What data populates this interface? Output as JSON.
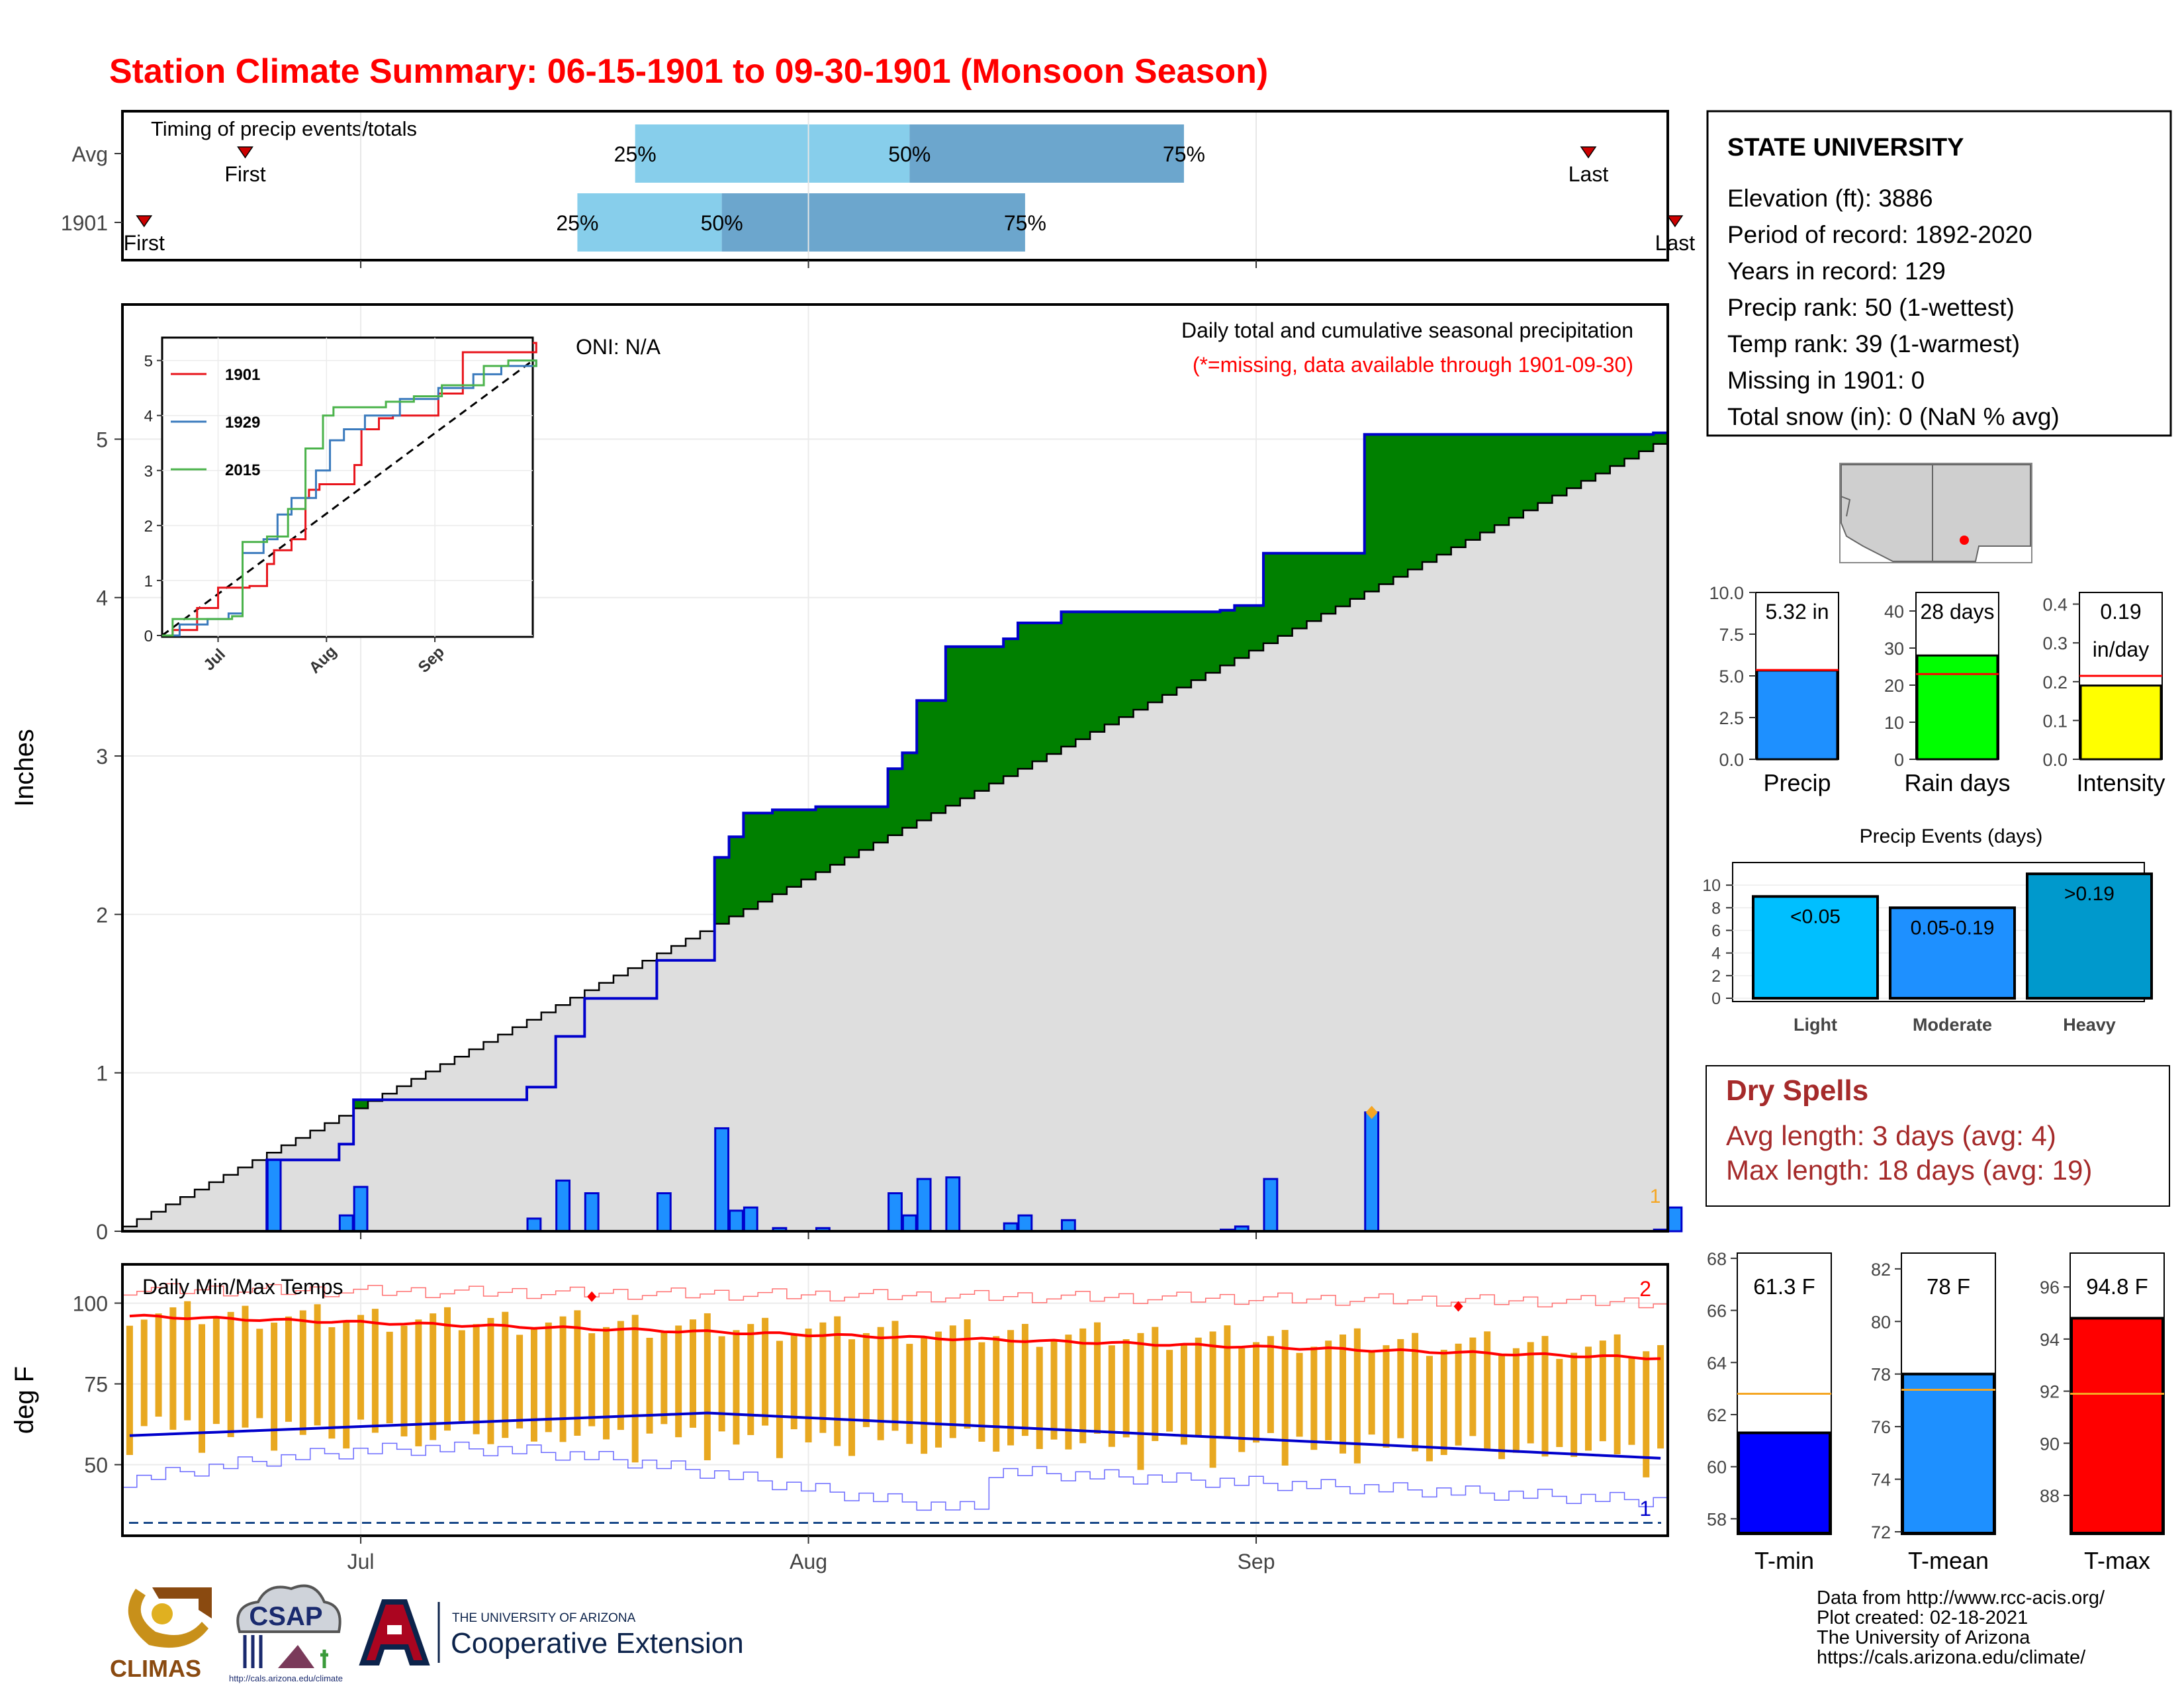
{
  "title": "Station Climate Summary: 06-15-1901 to 09-30-1901 (Monsoon Season)",
  "colors": {
    "title": "#ff0000",
    "cum_fill": "#008000",
    "cum_line": "#0000cc",
    "avg_fill": "#dedede",
    "daily_bar": "#1e90ff",
    "deficit": "#7a4a10",
    "temp_bar": "#e8a820",
    "tmax_line": "#ff0000",
    "tmin_line": "#0000cc",
    "light": "#00bfff",
    "moderate": "#1e90ff",
    "heavy": "#0099cc",
    "dry": "#a52a2a"
  },
  "chart_data": [
    {
      "id": "timing",
      "type": "bar",
      "title": "Timing of precip events/totals",
      "categories": [
        "Avg",
        "1901"
      ],
      "xlim": [
        "1901-06-15",
        "1901-09-30"
      ],
      "rows": [
        {
          "name": "Avg",
          "first": "1901-06-23",
          "p25": "1901-07-20",
          "p50": "1901-08-08",
          "p75": "1901-08-27",
          "last": "1901-09-24",
          "labels": {
            "first": "First",
            "p25": "25%",
            "p50": "50%",
            "p75": "75%",
            "last": "Last"
          }
        },
        {
          "name": "1901",
          "first": "1901-06-16",
          "p25": "1901-07-16",
          "p50": "1901-07-26",
          "p75": "1901-08-16",
          "last": "1901-09-30",
          "labels": {
            "first": "First",
            "p25": "25%",
            "p50": "50%",
            "p75": "75%",
            "last": "Last"
          }
        }
      ]
    },
    {
      "id": "precip",
      "type": "area",
      "title": "Daily total and cumulative seasonal precipitation",
      "subtitle": "(*=missing, data available through 1901-09-30)",
      "annotation": "ONI: N/A",
      "ylabel": "Inches",
      "ylim": [
        0,
        5.85
      ],
      "yticks": [
        0,
        1,
        2,
        3,
        4,
        5
      ],
      "xlim": [
        "1901-06-15",
        "1901-09-30"
      ],
      "xticks": [
        {
          "date": "1901-07-01",
          "label": "Jul"
        },
        {
          "date": "1901-08-01",
          "label": "Aug"
        },
        {
          "date": "1901-09-01",
          "label": "Sep"
        }
      ],
      "avg_cumulative": {
        "start": 0.03,
        "end": 4.97
      },
      "daily": [
        {
          "date": "1901-06-25",
          "value": 0.45
        },
        {
          "date": "1901-06-30",
          "value": 0.1
        },
        {
          "date": "1901-07-01",
          "value": 0.28
        },
        {
          "date": "1901-07-13",
          "value": 0.08
        },
        {
          "date": "1901-07-15",
          "value": 0.32
        },
        {
          "date": "1901-07-17",
          "value": 0.24
        },
        {
          "date": "1901-07-22",
          "value": 0.24
        },
        {
          "date": "1901-07-26",
          "value": 0.65
        },
        {
          "date": "1901-07-27",
          "value": 0.13
        },
        {
          "date": "1901-07-28",
          "value": 0.15
        },
        {
          "date": "1901-07-30",
          "value": 0.02
        },
        {
          "date": "1901-08-02",
          "value": 0.02
        },
        {
          "date": "1901-08-07",
          "value": 0.24
        },
        {
          "date": "1901-08-08",
          "value": 0.1
        },
        {
          "date": "1901-08-09",
          "value": 0.33
        },
        {
          "date": "1901-08-11",
          "value": 0.34
        },
        {
          "date": "1901-08-15",
          "value": 0.05
        },
        {
          "date": "1901-08-16",
          "value": 0.1
        },
        {
          "date": "1901-08-19",
          "value": 0.07
        },
        {
          "date": "1901-08-30",
          "value": 0.01
        },
        {
          "date": "1901-08-31",
          "value": 0.03
        },
        {
          "date": "1901-09-02",
          "value": 0.33
        },
        {
          "date": "1901-09-09",
          "value": 0.75
        },
        {
          "date": "1901-09-29",
          "value": 0.01
        },
        {
          "date": "1901-09-30",
          "value": 0.15
        }
      ],
      "max_marker": {
        "date": "1901-09-09",
        "value": 0.75
      },
      "rank_label": {
        "date": "1901-09-29",
        "text": "1"
      }
    },
    {
      "id": "inset",
      "type": "line",
      "ylim": [
        0,
        5.2
      ],
      "yticks": [
        0,
        1,
        2,
        3,
        4,
        5
      ],
      "xticks": [
        {
          "date": "1901-07-01",
          "label": "Jul"
        },
        {
          "date": "1901-08-01",
          "label": "Aug"
        },
        {
          "date": "1901-09-01",
          "label": "Sep"
        }
      ],
      "series": [
        {
          "name": "1901",
          "color": "#e8141b",
          "points": [
            [
              "1901-06-15",
              0
            ],
            [
              "1901-06-18",
              0.1
            ],
            [
              "1901-06-25",
              0.5
            ],
            [
              "1901-07-01",
              0.87
            ],
            [
              "1901-07-10",
              0.9
            ],
            [
              "1901-07-15",
              1.3
            ],
            [
              "1901-07-17",
              1.55
            ],
            [
              "1901-07-22",
              1.75
            ],
            [
              "1901-07-26",
              2.5
            ],
            [
              "1901-07-27",
              2.65
            ],
            [
              "1901-07-30",
              2.75
            ],
            [
              "1901-08-09",
              3.1
            ],
            [
              "1901-08-11",
              3.75
            ],
            [
              "1901-08-16",
              3.95
            ],
            [
              "1901-08-20",
              4.0
            ],
            [
              "1901-09-02",
              4.4
            ],
            [
              "1901-09-09",
              5.15
            ],
            [
              "1901-09-30",
              5.32
            ]
          ]
        },
        {
          "name": "1929",
          "color": "#3a7abd",
          "points": [
            [
              "1901-06-15",
              0
            ],
            [
              "1901-06-20",
              0.2
            ],
            [
              "1901-06-28",
              0.3
            ],
            [
              "1901-07-04",
              0.4
            ],
            [
              "1901-07-08",
              1.5
            ],
            [
              "1901-07-14",
              1.75
            ],
            [
              "1901-07-18",
              2.2
            ],
            [
              "1901-07-22",
              2.5
            ],
            [
              "1901-07-29",
              3.0
            ],
            [
              "1901-08-02",
              3.55
            ],
            [
              "1901-08-06",
              3.75
            ],
            [
              "1901-08-12",
              4.0
            ],
            [
              "1901-08-22",
              4.3
            ],
            [
              "1901-09-02",
              4.5
            ],
            [
              "1901-09-12",
              4.75
            ],
            [
              "1901-09-20",
              4.9
            ],
            [
              "1901-09-30",
              5.0
            ]
          ]
        },
        {
          "name": "2015",
          "color": "#4bb34b",
          "points": [
            [
              "1901-06-15",
              0
            ],
            [
              "1901-06-18",
              0.3
            ],
            [
              "1901-07-05",
              0.35
            ],
            [
              "1901-07-08",
              1.7
            ],
            [
              "1901-07-15",
              1.8
            ],
            [
              "1901-07-21",
              2.3
            ],
            [
              "1901-07-26",
              3.4
            ],
            [
              "1901-07-31",
              4.0
            ],
            [
              "1901-08-03",
              4.15
            ],
            [
              "1901-08-18",
              4.25
            ],
            [
              "1901-08-26",
              4.35
            ],
            [
              "1901-09-03",
              4.55
            ],
            [
              "1901-09-15",
              4.9
            ],
            [
              "1901-09-22",
              5.0
            ],
            [
              "1901-09-30",
              4.9
            ]
          ]
        }
      ],
      "avg_line": {
        "start": 0,
        "end": 5.0
      }
    },
    {
      "id": "temps",
      "type": "bar",
      "title": "Daily Min/Max Temps",
      "ylabel": "deg F",
      "ylim": [
        28,
        112
      ],
      "yticks": [
        50,
        75,
        100
      ],
      "xlim": [
        "1901-06-15",
        "1901-09-30"
      ],
      "xticks": [
        {
          "date": "1901-07-01",
          "label": "Jul"
        },
        {
          "date": "1901-08-01",
          "label": "Aug"
        },
        {
          "date": "1901-09-01",
          "label": "Sep"
        }
      ],
      "avg_tmax": {
        "start": 96,
        "end": 83
      },
      "avg_tmin": {
        "start": 59,
        "mid": 66,
        "end": 52
      },
      "record_low_line": 32,
      "tmax_records": [
        {
          "date": "1901-07-17",
          "value": 102
        },
        {
          "date": "1901-09-15",
          "value": 99
        }
      ],
      "label_top_right": "2",
      "label_bottom_right": "1"
    },
    {
      "id": "bars_precip",
      "type": "bar",
      "categories": [
        "Precip",
        "Rain days",
        "Intensity"
      ],
      "charts": [
        {
          "name": "Precip",
          "value": 5.32,
          "avg": 5.35,
          "ylim": [
            0,
            10
          ],
          "yticks": [
            "0.0",
            "2.5",
            "5.0",
            "7.5",
            "10.0"
          ],
          "label_top": "5.32 in",
          "label_bottom": "",
          "color": "#1e90ff"
        },
        {
          "name": "Rain days",
          "value": 28,
          "avg": 23,
          "ylim": [
            0,
            45
          ],
          "yticks": [
            "0",
            "10",
            "20",
            "30",
            "40"
          ],
          "label_top": "28 days",
          "label_bottom": "",
          "color": "#00ff00"
        },
        {
          "name": "Intensity",
          "value": 0.19,
          "avg": 0.215,
          "ylim": [
            0,
            0.43
          ],
          "yticks": [
            "0.0",
            "0.1",
            "0.2",
            "0.3",
            "0.4"
          ],
          "label_top": "0.19",
          "label_bottom": "in/day",
          "color": "#ffff00"
        }
      ]
    },
    {
      "id": "events",
      "type": "bar",
      "title": "Precip Events (days)",
      "categories": [
        "Light",
        "Moderate",
        "Heavy"
      ],
      "values": [
        9,
        8,
        11
      ],
      "labels": [
        "<0.05",
        "0.05-0.19",
        ">0.19"
      ],
      "ylim": [
        0,
        12
      ],
      "yticks": [
        0,
        2,
        4,
        6,
        8,
        10
      ]
    },
    {
      "id": "bars_temp",
      "type": "bar",
      "categories": [
        "T-min",
        "T-mean",
        "T-max"
      ],
      "charts": [
        {
          "name": "T-min",
          "value": 61.3,
          "avg": 62.8,
          "ylim": [
            57.4,
            68.2
          ],
          "yticks": [
            58,
            60,
            62,
            64,
            66,
            68
          ],
          "label": "61.3 F",
          "color": "#0000ff"
        },
        {
          "name": "T-mean",
          "value": 78,
          "avg": 77.4,
          "ylim": [
            71.9,
            82.6
          ],
          "yticks": [
            72,
            74,
            76,
            78,
            80,
            82
          ],
          "label": "78 F",
          "color": "#1e90ff"
        },
        {
          "name": "T-max",
          "value": 94.8,
          "avg": 91.9,
          "ylim": [
            86.5,
            97.3
          ],
          "yticks": [
            88,
            90,
            92,
            94,
            96
          ],
          "label": "94.8 F",
          "color": "#ff0000"
        }
      ]
    }
  ],
  "station": {
    "name": "STATE UNIVERSITY",
    "lines": [
      "Elevation (ft): 3886",
      "Period of record: 1892-2020",
      "Years in record: 129",
      "Precip rank: 50 (1-wettest)",
      "Temp rank: 39 (1-warmest)",
      "Missing in 1901: 0",
      "Total snow (in): 0 (NaN % avg)"
    ]
  },
  "dry_spells": {
    "title": "Dry Spells",
    "avg_length": "Avg length: 3 days (avg: 4)",
    "max_length": "Max length: 18 days (avg: 19)"
  },
  "footer": {
    "lines": [
      "Data from http://www.rcc-acis.org/",
      "Plot created: 02-18-2021",
      "The University of Arizona",
      "https://cals.arizona.edu/climate/"
    ],
    "logos": {
      "climas": "CLIMAS",
      "csap": "CSAP",
      "csap_url": "http://cals.arizona.edu/climate",
      "ua_small": "THE UNIVERSITY OF ARIZONA",
      "ua_big": "Cooperative Extension"
    }
  }
}
